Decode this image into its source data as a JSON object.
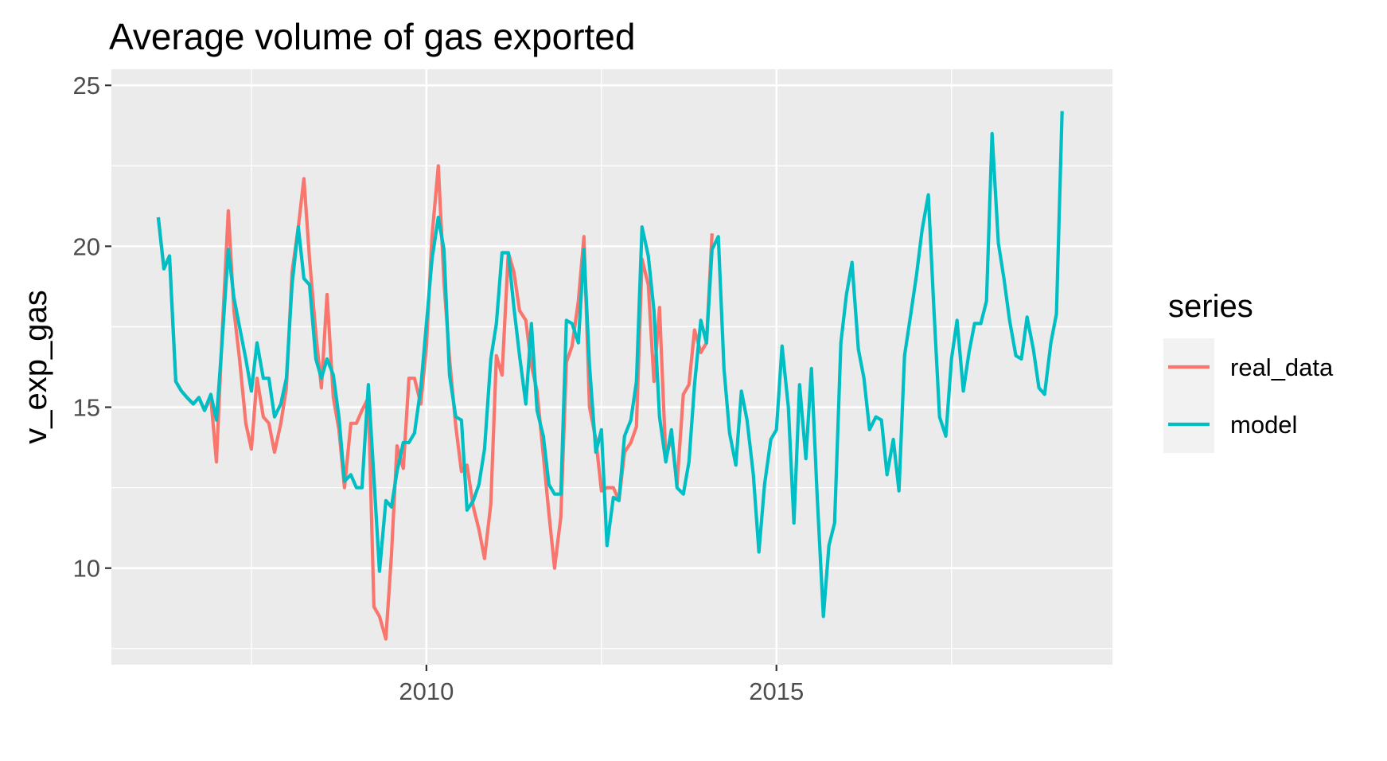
{
  "chart_data": {
    "type": "line",
    "title": "Average volume of gas exported",
    "xlabel": "",
    "ylabel": "v_exp_gas",
    "xlim": [
      2005.5,
      2019.8
    ],
    "ylim": [
      7.0,
      25.5
    ],
    "xticks": [
      2010,
      2015
    ],
    "xtick_labels": [
      "2010",
      "2015"
    ],
    "yticks": [
      10,
      15,
      20,
      25
    ],
    "ytick_labels": [
      "10",
      "15",
      "20",
      "25"
    ],
    "grid": true,
    "legend": {
      "title": "series",
      "position": "right"
    },
    "series": [
      {
        "name": "real_data",
        "color": "#F8766D",
        "points": [
          [
            2006.17,
            20.9
          ],
          [
            2006.25,
            19.3
          ],
          [
            2006.33,
            19.7
          ],
          [
            2006.42,
            15.8
          ],
          [
            2006.5,
            15.5
          ],
          [
            2006.58,
            15.3
          ],
          [
            2006.67,
            15.1
          ],
          [
            2006.75,
            15.3
          ],
          [
            2006.83,
            14.9
          ],
          [
            2006.92,
            15.3
          ],
          [
            2007.0,
            13.3
          ],
          [
            2007.08,
            17.2
          ],
          [
            2007.17,
            21.1
          ],
          [
            2007.25,
            18.0
          ],
          [
            2007.33,
            16.5
          ],
          [
            2007.42,
            14.5
          ],
          [
            2007.5,
            13.7
          ],
          [
            2007.58,
            15.9
          ],
          [
            2007.67,
            14.7
          ],
          [
            2007.75,
            14.5
          ],
          [
            2007.83,
            13.6
          ],
          [
            2007.92,
            14.5
          ],
          [
            2008.0,
            15.6
          ],
          [
            2008.08,
            19.2
          ],
          [
            2008.17,
            20.6
          ],
          [
            2008.25,
            22.1
          ],
          [
            2008.33,
            19.6
          ],
          [
            2008.42,
            17.3
          ],
          [
            2008.5,
            15.6
          ],
          [
            2008.58,
            18.5
          ],
          [
            2008.67,
            15.3
          ],
          [
            2008.75,
            14.3
          ],
          [
            2008.83,
            12.5
          ],
          [
            2008.92,
            14.5
          ],
          [
            2009.0,
            14.5
          ],
          [
            2009.08,
            14.9
          ],
          [
            2009.17,
            15.3
          ],
          [
            2009.25,
            8.8
          ],
          [
            2009.33,
            8.5
          ],
          [
            2009.42,
            7.8
          ],
          [
            2009.5,
            10.4
          ],
          [
            2009.58,
            13.8
          ],
          [
            2009.67,
            13.1
          ],
          [
            2009.75,
            15.9
          ],
          [
            2009.83,
            15.9
          ],
          [
            2009.92,
            15.1
          ],
          [
            2010.0,
            16.9
          ],
          [
            2010.08,
            20.3
          ],
          [
            2010.17,
            22.5
          ],
          [
            2010.25,
            18.9
          ],
          [
            2010.33,
            16.5
          ],
          [
            2010.42,
            14.4
          ],
          [
            2010.5,
            13.0
          ],
          [
            2010.58,
            13.2
          ],
          [
            2010.67,
            11.9
          ],
          [
            2010.75,
            11.2
          ],
          [
            2010.83,
            10.3
          ],
          [
            2010.92,
            12.0
          ],
          [
            2011.0,
            16.6
          ],
          [
            2011.08,
            16.0
          ],
          [
            2011.17,
            19.8
          ],
          [
            2011.25,
            19.2
          ],
          [
            2011.33,
            18.0
          ],
          [
            2011.42,
            17.7
          ],
          [
            2011.5,
            16.3
          ],
          [
            2011.58,
            15.5
          ],
          [
            2011.67,
            13.5
          ],
          [
            2011.75,
            11.7
          ],
          [
            2011.83,
            10.0
          ],
          [
            2011.92,
            11.6
          ],
          [
            2012.0,
            16.4
          ],
          [
            2012.08,
            16.9
          ],
          [
            2012.17,
            18.3
          ],
          [
            2012.25,
            20.3
          ],
          [
            2012.33,
            15.0
          ],
          [
            2012.42,
            14.0
          ],
          [
            2012.5,
            12.4
          ],
          [
            2012.58,
            12.5
          ],
          [
            2012.67,
            12.5
          ],
          [
            2012.75,
            12.1
          ],
          [
            2012.83,
            13.6
          ],
          [
            2012.92,
            13.9
          ],
          [
            2013.0,
            14.4
          ],
          [
            2013.08,
            19.6
          ],
          [
            2013.17,
            18.8
          ],
          [
            2013.25,
            15.8
          ],
          [
            2013.33,
            18.1
          ],
          [
            2013.42,
            13.4
          ],
          [
            2013.5,
            14.1
          ],
          [
            2013.58,
            12.6
          ],
          [
            2013.67,
            15.4
          ],
          [
            2013.75,
            15.7
          ],
          [
            2013.83,
            17.4
          ],
          [
            2013.92,
            16.7
          ],
          [
            2014.0,
            17.0
          ],
          [
            2014.08,
            20.4
          ]
        ]
      },
      {
        "name": "model",
        "color": "#00BFC4",
        "points": [
          [
            2006.17,
            20.9
          ],
          [
            2006.25,
            19.3
          ],
          [
            2006.33,
            19.7
          ],
          [
            2006.42,
            15.8
          ],
          [
            2006.5,
            15.5
          ],
          [
            2006.58,
            15.3
          ],
          [
            2006.67,
            15.1
          ],
          [
            2006.75,
            15.3
          ],
          [
            2006.83,
            14.9
          ],
          [
            2006.92,
            15.4
          ],
          [
            2007.0,
            14.6
          ],
          [
            2007.08,
            17.0
          ],
          [
            2007.17,
            19.9
          ],
          [
            2007.25,
            18.4
          ],
          [
            2007.33,
            17.5
          ],
          [
            2007.42,
            16.5
          ],
          [
            2007.5,
            15.5
          ],
          [
            2007.58,
            17.0
          ],
          [
            2007.67,
            15.9
          ],
          [
            2007.75,
            15.9
          ],
          [
            2007.83,
            14.7
          ],
          [
            2007.92,
            15.1
          ],
          [
            2008.0,
            15.9
          ],
          [
            2008.08,
            18.8
          ],
          [
            2008.17,
            20.6
          ],
          [
            2008.25,
            19.0
          ],
          [
            2008.33,
            18.8
          ],
          [
            2008.42,
            16.5
          ],
          [
            2008.5,
            15.9
          ],
          [
            2008.58,
            16.5
          ],
          [
            2008.67,
            16.0
          ],
          [
            2008.75,
            14.7
          ],
          [
            2008.83,
            12.7
          ],
          [
            2008.92,
            12.9
          ],
          [
            2009.0,
            12.5
          ],
          [
            2009.08,
            12.5
          ],
          [
            2009.17,
            15.7
          ],
          [
            2009.25,
            12.8
          ],
          [
            2009.33,
            9.9
          ],
          [
            2009.42,
            12.1
          ],
          [
            2009.5,
            11.9
          ],
          [
            2009.58,
            13.0
          ],
          [
            2009.67,
            13.9
          ],
          [
            2009.75,
            13.9
          ],
          [
            2009.83,
            14.2
          ],
          [
            2009.92,
            15.6
          ],
          [
            2010.0,
            17.6
          ],
          [
            2010.08,
            19.6
          ],
          [
            2010.17,
            20.9
          ],
          [
            2010.25,
            19.9
          ],
          [
            2010.33,
            16.0
          ],
          [
            2010.42,
            14.7
          ],
          [
            2010.5,
            14.6
          ],
          [
            2010.58,
            11.8
          ],
          [
            2010.67,
            12.1
          ],
          [
            2010.75,
            12.6
          ],
          [
            2010.83,
            13.7
          ],
          [
            2010.92,
            16.5
          ],
          [
            2011.0,
            17.6
          ],
          [
            2011.08,
            19.8
          ],
          [
            2011.17,
            19.8
          ],
          [
            2011.25,
            18.1
          ],
          [
            2011.33,
            16.6
          ],
          [
            2011.42,
            15.1
          ],
          [
            2011.5,
            17.6
          ],
          [
            2011.58,
            14.9
          ],
          [
            2011.67,
            14.1
          ],
          [
            2011.75,
            12.6
          ],
          [
            2011.83,
            12.3
          ],
          [
            2011.92,
            12.3
          ],
          [
            2012.0,
            17.7
          ],
          [
            2012.08,
            17.6
          ],
          [
            2012.17,
            17.0
          ],
          [
            2012.25,
            19.9
          ],
          [
            2012.33,
            16.3
          ],
          [
            2012.42,
            13.6
          ],
          [
            2012.5,
            14.3
          ],
          [
            2012.58,
            10.7
          ],
          [
            2012.67,
            12.2
          ],
          [
            2012.75,
            12.1
          ],
          [
            2012.83,
            14.1
          ],
          [
            2012.92,
            14.6
          ],
          [
            2013.0,
            15.8
          ],
          [
            2013.08,
            20.6
          ],
          [
            2013.17,
            19.7
          ],
          [
            2013.25,
            18.0
          ],
          [
            2013.33,
            14.7
          ],
          [
            2013.42,
            13.3
          ],
          [
            2013.5,
            14.3
          ],
          [
            2013.58,
            12.5
          ],
          [
            2013.67,
            12.3
          ],
          [
            2013.75,
            13.3
          ],
          [
            2013.83,
            15.7
          ],
          [
            2013.92,
            17.7
          ],
          [
            2014.0,
            17.0
          ],
          [
            2014.08,
            19.9
          ],
          [
            2014.17,
            20.3
          ],
          [
            2014.25,
            16.2
          ],
          [
            2014.33,
            14.2
          ],
          [
            2014.42,
            13.2
          ],
          [
            2014.5,
            15.5
          ],
          [
            2014.58,
            14.6
          ],
          [
            2014.67,
            12.9
          ],
          [
            2014.75,
            10.5
          ],
          [
            2014.83,
            12.6
          ],
          [
            2014.92,
            14.0
          ],
          [
            2015.0,
            14.3
          ],
          [
            2015.08,
            16.9
          ],
          [
            2015.17,
            15.0
          ],
          [
            2015.25,
            11.4
          ],
          [
            2015.33,
            15.7
          ],
          [
            2015.42,
            13.4
          ],
          [
            2015.5,
            16.2
          ],
          [
            2015.58,
            12.3
          ],
          [
            2015.67,
            8.5
          ],
          [
            2015.75,
            10.7
          ],
          [
            2015.83,
            11.4
          ],
          [
            2015.92,
            17.0
          ],
          [
            2016.0,
            18.5
          ],
          [
            2016.08,
            19.5
          ],
          [
            2016.17,
            16.8
          ],
          [
            2016.25,
            15.9
          ],
          [
            2016.33,
            14.3
          ],
          [
            2016.42,
            14.7
          ],
          [
            2016.5,
            14.6
          ],
          [
            2016.58,
            12.9
          ],
          [
            2016.67,
            14.0
          ],
          [
            2016.75,
            12.4
          ],
          [
            2016.83,
            16.6
          ],
          [
            2016.92,
            17.9
          ],
          [
            2017.0,
            19.1
          ],
          [
            2017.08,
            20.5
          ],
          [
            2017.17,
            21.6
          ],
          [
            2017.25,
            18.0
          ],
          [
            2017.33,
            14.7
          ],
          [
            2017.42,
            14.1
          ],
          [
            2017.5,
            16.5
          ],
          [
            2017.58,
            17.7
          ],
          [
            2017.67,
            15.5
          ],
          [
            2017.75,
            16.7
          ],
          [
            2017.83,
            17.6
          ],
          [
            2017.92,
            17.6
          ],
          [
            2018.0,
            18.3
          ],
          [
            2018.08,
            23.5
          ],
          [
            2018.17,
            20.1
          ],
          [
            2018.25,
            19.0
          ],
          [
            2018.33,
            17.7
          ],
          [
            2018.42,
            16.6
          ],
          [
            2018.5,
            16.5
          ],
          [
            2018.58,
            17.8
          ],
          [
            2018.67,
            16.8
          ],
          [
            2018.75,
            15.6
          ],
          [
            2018.83,
            15.4
          ],
          [
            2018.92,
            17.0
          ],
          [
            2019.0,
            17.9
          ],
          [
            2019.08,
            24.2
          ]
        ]
      }
    ]
  }
}
